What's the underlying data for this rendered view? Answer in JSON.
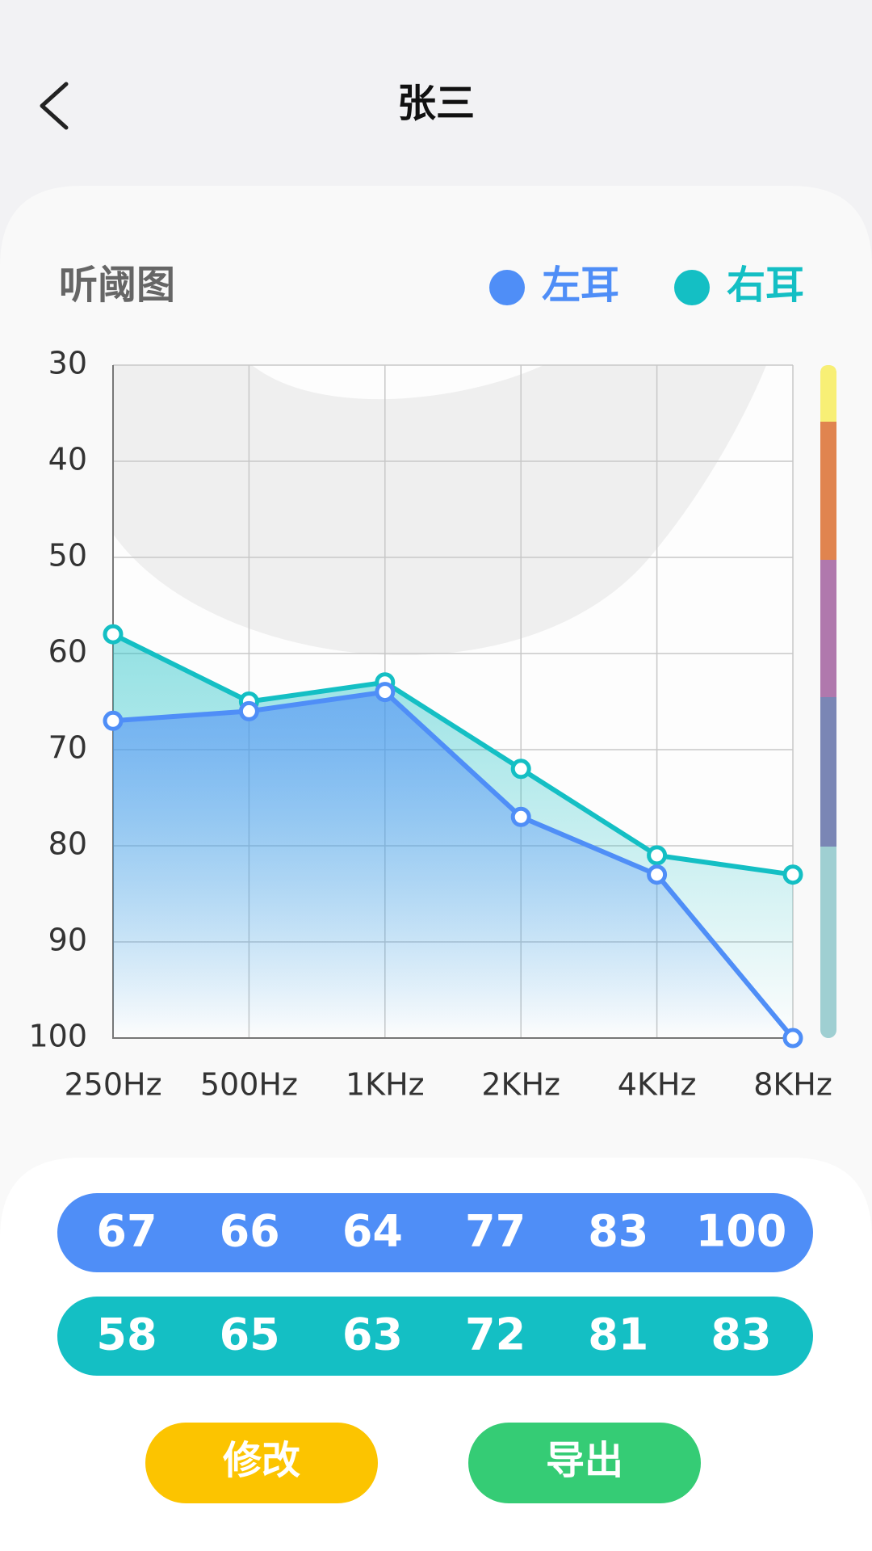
{
  "header": {
    "title": "张三"
  },
  "chart_data": {
    "type": "line",
    "title": "听阈图",
    "categories": [
      "250Hz",
      "500Hz",
      "1KHz",
      "2KHz",
      "4KHz",
      "8KHz"
    ],
    "series": [
      {
        "name": "左耳",
        "color": "#4f8ef7",
        "values": [
          67,
          66,
          64,
          77,
          83,
          100
        ]
      },
      {
        "name": "右耳",
        "color": "#14bfc4",
        "values": [
          58,
          65,
          63,
          72,
          81,
          83
        ]
      }
    ],
    "ylim": [
      30,
      100
    ],
    "yticks": [
      30,
      40,
      50,
      60,
      70,
      80,
      90,
      100
    ],
    "y_inverted": true,
    "grid": true,
    "area": true
  },
  "buttons": [
    "修改",
    "导出"
  ]
}
